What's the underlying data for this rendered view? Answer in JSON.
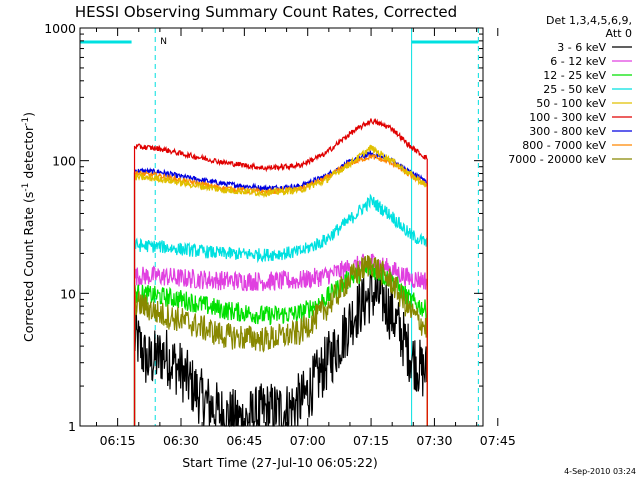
{
  "chart_data": {
    "type": "line",
    "title": "HESSI Observing Summary Count Rates, Corrected",
    "xlabel": "Start Time (27-Jul-10 06:05:22)",
    "ylabel": "Corrected Count Rate (s",
    "ylabel_sup": "-1",
    "ylabel_mid": " detector",
    "ylabel_sup2": "-1",
    "ylabel_end": ")",
    "yscale": "log",
    "ylim": [
      1,
      1000
    ],
    "xlim_minutes": [
      6.09,
      101.5
    ],
    "x_tick_labels": [
      "06:15",
      "06:30",
      "06:45",
      "07:00",
      "07:15",
      "07:30",
      "07:45"
    ],
    "x_tick_minutes": [
      15,
      30,
      45,
      60,
      75,
      90,
      105
    ],
    "y_tick_labels": [
      "1",
      "10",
      "100",
      "1000"
    ],
    "y_tick_values": [
      1,
      10,
      100,
      1000
    ],
    "legend_header": [
      "Det 1,3,4,5,6,9,",
      "Att 0"
    ],
    "legend_position": "right",
    "timestamp": "4-Sep-2010 03:24",
    "flag_label": "N",
    "data_start_min": 19.0,
    "data_end_min": 88.3,
    "flag_intervals_min": [
      [
        6.09,
        18.3
      ],
      [
        84.6,
        100.4
      ]
    ],
    "night_lines_min": [
      6.09,
      23.9,
      84.6,
      100.4
    ],
    "series": [
      {
        "name": "3 - 6 keV",
        "color": "#000000",
        "noise": 0.9,
        "points": [
          [
            19.5,
            4.5
          ],
          [
            22,
            3.0
          ],
          [
            26,
            3.5
          ],
          [
            30,
            2.6
          ],
          [
            35,
            1.6
          ],
          [
            40,
            1.2
          ],
          [
            45,
            1.1
          ],
          [
            50,
            1.3
          ],
          [
            55,
            1.3
          ],
          [
            59,
            1.6
          ],
          [
            63,
            2.5
          ],
          [
            67,
            4.0
          ],
          [
            71,
            7.0
          ],
          [
            75,
            10.0
          ],
          [
            78,
            9.0
          ],
          [
            81,
            6.0
          ],
          [
            84,
            3.6
          ],
          [
            87,
            2.6
          ]
        ]
      },
      {
        "name": "6 - 12 keV",
        "color": "#e040e0",
        "noise": 0.3,
        "points": [
          [
            19.5,
            13.5
          ],
          [
            25,
            13.5
          ],
          [
            30,
            13.0
          ],
          [
            40,
            12.5
          ],
          [
            50,
            12.3
          ],
          [
            58,
            12.5
          ],
          [
            64,
            13.5
          ],
          [
            70,
            15.5
          ],
          [
            75,
            17.5
          ],
          [
            80,
            15.0
          ],
          [
            84,
            13.0
          ],
          [
            88,
            12.5
          ]
        ]
      },
      {
        "name": "12 - 25 keV",
        "color": "#00e000",
        "noise": 0.3,
        "points": [
          [
            19.5,
            10.0
          ],
          [
            25,
            9.5
          ],
          [
            30,
            9.0
          ],
          [
            40,
            7.5
          ],
          [
            50,
            6.8
          ],
          [
            58,
            7.0
          ],
          [
            64,
            9.0
          ],
          [
            70,
            13.0
          ],
          [
            75,
            15.5
          ],
          [
            80,
            12.5
          ],
          [
            84,
            9.0
          ],
          [
            88,
            7.5
          ]
        ]
      },
      {
        "name": "25 - 50 keV",
        "color": "#00e0e0",
        "noise": 0.2,
        "points": [
          [
            19.5,
            23.0
          ],
          [
            25,
            22.5
          ],
          [
            30,
            21.5
          ],
          [
            40,
            20.0
          ],
          [
            50,
            19.5
          ],
          [
            58,
            20.5
          ],
          [
            64,
            25.0
          ],
          [
            70,
            36.0
          ],
          [
            75,
            50.0
          ],
          [
            80,
            38.0
          ],
          [
            84,
            28.0
          ],
          [
            88,
            24.0
          ]
        ]
      },
      {
        "name": "50 - 100 keV",
        "color": "#e0c000",
        "noise": 0.1,
        "points": [
          [
            19.5,
            75.0
          ],
          [
            25,
            73.0
          ],
          [
            30,
            68.0
          ],
          [
            40,
            60.0
          ],
          [
            50,
            57.0
          ],
          [
            58,
            60.0
          ],
          [
            64,
            70.0
          ],
          [
            70,
            95.0
          ],
          [
            75,
            125.0
          ],
          [
            80,
            100.0
          ],
          [
            84,
            80.0
          ],
          [
            88,
            65.0
          ]
        ]
      },
      {
        "name": "100 - 300 keV",
        "color": "#e00000",
        "noise": 0.08,
        "points": [
          [
            19.5,
            128.0
          ],
          [
            25,
            123.0
          ],
          [
            30,
            113.0
          ],
          [
            40,
            97.0
          ],
          [
            50,
            88.0
          ],
          [
            58,
            92.0
          ],
          [
            64,
            112.0
          ],
          [
            70,
            160.0
          ],
          [
            75,
            200.0
          ],
          [
            80,
            175.0
          ],
          [
            84,
            130.0
          ],
          [
            88,
            105.0
          ]
        ]
      },
      {
        "name": "300 - 800 keV",
        "color": "#0000e0",
        "noise": 0.08,
        "points": [
          [
            19.5,
            84.0
          ],
          [
            25,
            82.0
          ],
          [
            30,
            76.0
          ],
          [
            40,
            67.0
          ],
          [
            50,
            62.0
          ],
          [
            58,
            64.0
          ],
          [
            64,
            76.0
          ],
          [
            70,
            98.0
          ],
          [
            75,
            113.0
          ],
          [
            80,
            100.0
          ],
          [
            84,
            83.0
          ],
          [
            88,
            70.0
          ]
        ]
      },
      {
        "name": "800 - 7000 keV",
        "color": "#ff8800",
        "noise": 0.08,
        "points": [
          [
            19.5,
            80.0
          ],
          [
            25,
            77.0
          ],
          [
            30,
            71.0
          ],
          [
            40,
            62.0
          ],
          [
            50,
            58.0
          ],
          [
            58,
            61.0
          ],
          [
            64,
            73.0
          ],
          [
            70,
            95.0
          ],
          [
            75,
            108.0
          ],
          [
            80,
            96.0
          ],
          [
            84,
            78.0
          ],
          [
            88,
            67.0
          ]
        ]
      },
      {
        "name": "7000 - 20000 keV",
        "color": "#888800",
        "noise": 0.4,
        "points": [
          [
            19.5,
            8.5
          ],
          [
            25,
            7.0
          ],
          [
            30,
            6.3
          ],
          [
            40,
            4.8
          ],
          [
            50,
            4.5
          ],
          [
            58,
            5.0
          ],
          [
            64,
            7.5
          ],
          [
            70,
            13.0
          ],
          [
            75,
            17.0
          ],
          [
            80,
            12.0
          ],
          [
            84,
            7.5
          ],
          [
            88,
            5.5
          ]
        ]
      }
    ]
  }
}
